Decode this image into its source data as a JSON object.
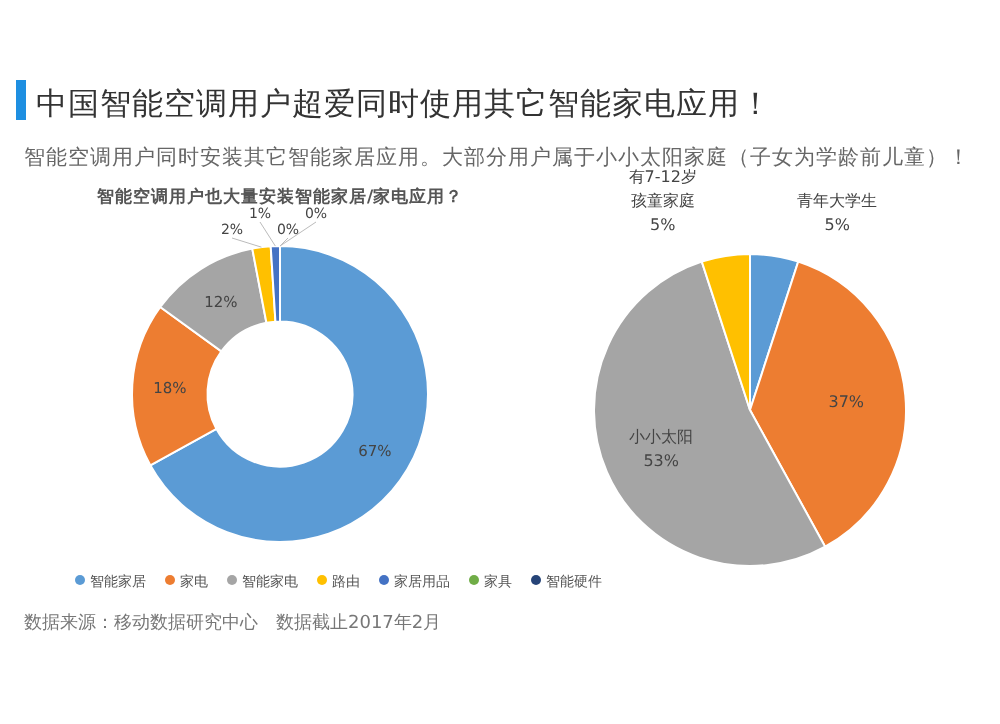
{
  "chart_data": [
    {
      "type": "other",
      "title": "中国智能空调用户超爱同时使用其它智能家电应用！",
      "subtitle": "智能空调用户同时安装其它智能家居应用。大部分用户属于小小太阳家庭（子女为学龄前儿童）！",
      "annotations": [
        "数据来源：移动数据研究中心　数据截止2017年2月"
      ]
    },
    {
      "type": "donut",
      "title": "智能空调用户也大量安装智能家居/家电应用？",
      "categories": [
        "智能家居",
        "家电",
        "智能家电",
        "路由",
        "家居用品",
        "家具",
        "智能硬件"
      ],
      "values": [
        67,
        18,
        12,
        2,
        1,
        0,
        0
      ],
      "colors": [
        "#5b9bd5",
        "#ed7d31",
        "#a5a5a5",
        "#ffc000",
        "#4472c4",
        "#70ad47",
        "#264478"
      ],
      "value_labels": [
        "67%",
        "18%",
        "12%",
        "2%",
        "1%",
        "0%",
        "0%"
      ],
      "legend": "bottom"
    },
    {
      "type": "pie",
      "categories": [
        "青年大学生",
        null,
        "小小太阳",
        "有7-12岁孩童家庭"
      ],
      "values": [
        5,
        37,
        53,
        5
      ],
      "colors": [
        "#5b9bd5",
        "#ed7d31",
        "#a5a5a5",
        "#ffc000"
      ],
      "value_labels": [
        "5%",
        "37%",
        "53%",
        "5%"
      ]
    }
  ]
}
